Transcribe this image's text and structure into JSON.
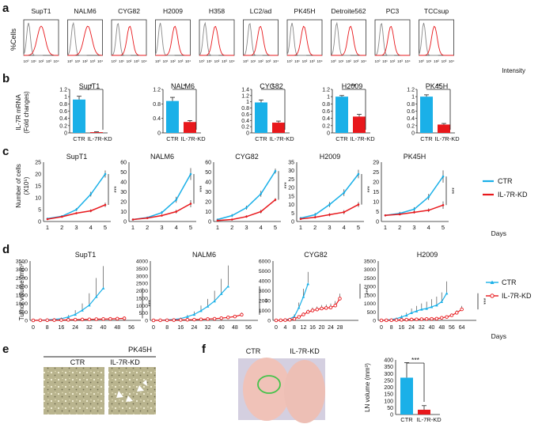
{
  "colors": {
    "ctr": "#1ab0e8",
    "kd": "#e8181c",
    "control_gray": "#888888",
    "axis": "#222222"
  },
  "panels": {
    "a": "a",
    "b": "b",
    "c": "c",
    "d": "d",
    "e": "e",
    "f": "f"
  },
  "panel_a": {
    "ylabel": "%Cells",
    "xlabel": "Intensity",
    "xticks": [
      "10⁰",
      "10¹",
      "10²",
      "10³",
      "10⁴"
    ],
    "cells": [
      "SupT1",
      "NALM6",
      "CYG82",
      "H2009",
      "H358",
      "LC2/ad",
      "PK45H",
      "Detroite562",
      "PC3",
      "TCCsup"
    ]
  },
  "panel_b": {
    "ylabel1": "IL-7R mRNA",
    "ylabel2": "(Fold changes)",
    "categories": [
      "CTR",
      "IL-7R-KD"
    ],
    "charts": [
      {
        "title": "SupT1",
        "ticks": [
          "0",
          "0.2",
          "0.4",
          "0.6",
          "0.8",
          "1",
          "1.2"
        ],
        "ylim": [
          0,
          1.2
        ],
        "values": [
          0.92,
          0.02
        ],
        "errors": [
          0.09,
          0.01
        ],
        "sig": "*"
      },
      {
        "title": "NALM6",
        "ticks": [
          "0",
          "0.4",
          "0.8",
          "1.2"
        ],
        "ylim": [
          0,
          1.2
        ],
        "values": [
          0.88,
          0.3
        ],
        "errors": [
          0.1,
          0.04
        ],
        "sig": "*"
      },
      {
        "title": "CYG82",
        "ticks": [
          "0",
          "0.2",
          "0.4",
          "0.6",
          "0.8",
          "1",
          "1.2",
          "1.4"
        ],
        "ylim": [
          0,
          1.4
        ],
        "values": [
          0.98,
          0.33
        ],
        "errors": [
          0.08,
          0.05
        ],
        "sig": "*"
      },
      {
        "title": "H2009",
        "ticks": [
          "0",
          "0.2",
          "0.4",
          "0.6",
          "0.8",
          "1",
          "1.2"
        ],
        "ylim": [
          0,
          1.2
        ],
        "values": [
          1.0,
          0.45
        ],
        "errors": [
          0.03,
          0.06
        ],
        "sig": "**"
      },
      {
        "title": "PK45H",
        "ticks": [
          "0",
          "0.2",
          "0.4",
          "0.6",
          "0.8",
          "1",
          "1.2"
        ],
        "ylim": [
          0,
          1.2
        ],
        "values": [
          1.0,
          0.23
        ],
        "errors": [
          0.05,
          0.03
        ],
        "sig": "**"
      }
    ]
  },
  "panel_c": {
    "ylabel1": "Number of cells",
    "ylabel2": "(X10⁵)",
    "xticks": [
      "1",
      "2",
      "3",
      "4",
      "5"
    ],
    "xlabel": "Days",
    "sig": "***",
    "legend": [
      {
        "label": "CTR",
        "color": "#1ab0e8"
      },
      {
        "label": "IL-7R-KD",
        "color": "#e8181c"
      }
    ],
    "charts": [
      {
        "title": "SupT1",
        "ymax": 25,
        "ticks": [
          "0",
          "5",
          "10",
          "15",
          "20",
          "25"
        ],
        "ctr": [
          1.2,
          2.2,
          5.0,
          11.5,
          20.0
        ],
        "kd": [
          1.0,
          2.0,
          3.5,
          4.5,
          7.0
        ],
        "err": [
          0.3,
          0.4,
          0.6,
          1.0,
          1.5
        ]
      },
      {
        "title": "NALM6",
        "ymax": 60,
        "ticks": [
          "0",
          "10",
          "20",
          "30",
          "40",
          "50",
          "60"
        ],
        "ctr": [
          2,
          4,
          9,
          22,
          48
        ],
        "kd": [
          2,
          3.5,
          6,
          10,
          18
        ],
        "err": [
          0.5,
          0.8,
          1.5,
          3,
          6
        ]
      },
      {
        "title": "CYG82",
        "ymax": 60,
        "ticks": [
          "0",
          "10",
          "20",
          "30",
          "40",
          "50",
          "60"
        ],
        "ctr": [
          2,
          6,
          14,
          28,
          51
        ],
        "kd": [
          1,
          2,
          5,
          10,
          22
        ],
        "err": [
          0.5,
          1.5,
          2,
          3,
          2.5
        ]
      },
      {
        "title": "H2009",
        "ymax": 35,
        "ticks": [
          "0",
          "5",
          "10",
          "15",
          "20",
          "25",
          "30",
          "35"
        ],
        "ctr": [
          2,
          4,
          10,
          17,
          28
        ],
        "kd": [
          1.5,
          2.5,
          4,
          5.5,
          10
        ],
        "err": [
          0.5,
          1,
          1.5,
          2,
          2.5
        ]
      },
      {
        "title": "PK45H",
        "ymax": 29,
        "ticks": [
          "0",
          "5",
          "10",
          "15",
          "20",
          "25",
          "29"
        ],
        "ctr": [
          3,
          4,
          6,
          12,
          22
        ],
        "kd": [
          3,
          3.5,
          4.5,
          5.5,
          8
        ],
        "err": [
          0.5,
          0.7,
          1,
          1.5,
          3
        ]
      }
    ]
  },
  "panel_d": {
    "ylabel": "Tumor volume (mm³)",
    "xlabel": "Days",
    "sig": [
      "***",
      "**",
      "***",
      "***"
    ],
    "legend": [
      {
        "label": "CTR",
        "color": "#1ab0e8"
      },
      {
        "label": "IL-7R-KD",
        "color": "#e8181c"
      }
    ],
    "charts": [
      {
        "title": "SupT1",
        "ymax": 3500,
        "ticks": [
          "0",
          "500",
          "1000",
          "1500",
          "2000",
          "2500",
          "3000",
          "3500"
        ],
        "xticks": [
          "0",
          "8",
          "16",
          "24",
          "32",
          "40",
          "48",
          "56"
        ],
        "xmax": 56,
        "ctr_x": [
          0,
          4,
          8,
          12,
          16,
          20,
          24,
          28,
          32,
          36,
          40
        ],
        "ctr": [
          0,
          10,
          30,
          60,
          100,
          200,
          350,
          600,
          900,
          1400,
          1900
        ],
        "ctr_err": [
          0,
          5,
          10,
          30,
          60,
          120,
          250,
          400,
          700,
          1100,
          1300
        ],
        "kd_x": [
          0,
          4,
          8,
          12,
          16,
          20,
          24,
          28,
          32,
          36,
          40,
          44,
          48,
          52
        ],
        "kd": [
          0,
          5,
          10,
          15,
          20,
          30,
          40,
          50,
          60,
          70,
          80,
          90,
          100,
          120
        ],
        "kd_err": [
          0,
          3,
          5,
          8,
          10,
          12,
          15,
          18,
          20,
          22,
          25,
          30,
          35,
          40
        ]
      },
      {
        "title": "NALM6",
        "ymax": 4000,
        "ticks": [
          "0",
          "500",
          "1000",
          "1500",
          "2000",
          "2500",
          "3000",
          "3500",
          "4000"
        ],
        "xticks": [
          "0",
          "8",
          "16",
          "24",
          "32",
          "40",
          "48",
          "56"
        ],
        "xmax": 56,
        "ctr_x": [
          0,
          4,
          8,
          12,
          16,
          20,
          24,
          28,
          32,
          36,
          40,
          44
        ],
        "ctr": [
          0,
          10,
          30,
          60,
          120,
          250,
          400,
          650,
          950,
          1300,
          1800,
          2300
        ],
        "ctr_err": [
          0,
          5,
          15,
          30,
          60,
          120,
          200,
          350,
          500,
          700,
          1000,
          1400
        ],
        "kd_x": [
          0,
          4,
          8,
          12,
          16,
          20,
          24,
          28,
          32,
          36,
          40,
          44,
          48,
          52
        ],
        "kd": [
          0,
          5,
          10,
          20,
          30,
          40,
          50,
          70,
          90,
          110,
          150,
          200,
          260,
          380
        ],
        "kd_err": [
          0,
          3,
          5,
          8,
          10,
          15,
          20,
          30,
          40,
          50,
          70,
          90,
          110,
          150
        ]
      },
      {
        "title": "CYG82",
        "ymax": 6000,
        "ticks": [
          "0",
          "1000",
          "2000",
          "3000",
          "4000",
          "5000",
          "6000"
        ],
        "xticks": [
          "0",
          "4",
          "8",
          "12",
          "16",
          "20",
          "24",
          "28"
        ],
        "xmax": 32,
        "ctr_x": [
          0,
          2,
          4,
          6,
          8,
          10,
          12,
          14
        ],
        "ctr": [
          0,
          20,
          60,
          150,
          400,
          1300,
          2400,
          3700
        ],
        "ctr_err": [
          0,
          10,
          30,
          80,
          200,
          500,
          800,
          1200
        ],
        "kd_x": [
          0,
          2,
          4,
          6,
          8,
          10,
          12,
          14,
          16,
          18,
          20,
          22,
          24,
          26,
          28
        ],
        "kd": [
          0,
          10,
          30,
          60,
          150,
          350,
          600,
          850,
          1000,
          1100,
          1200,
          1250,
          1300,
          1500,
          2200
        ],
        "kd_err": [
          0,
          5,
          15,
          30,
          60,
          120,
          200,
          250,
          300,
          300,
          350,
          350,
          400,
          450,
          500
        ]
      },
      {
        "title": "H2009",
        "ymax": 3500,
        "ticks": [
          "0",
          "500",
          "1000",
          "1500",
          "2000",
          "2500",
          "3000",
          "3500"
        ],
        "xticks": [
          "0",
          "8",
          "16",
          "24",
          "32",
          "40",
          "48",
          "56",
          "64"
        ],
        "xmax": 68,
        "ctr_x": [
          0,
          4,
          8,
          12,
          16,
          20,
          24,
          28,
          32,
          36,
          40,
          44,
          48,
          52
        ],
        "ctr": [
          0,
          20,
          50,
          100,
          200,
          300,
          450,
          550,
          650,
          700,
          800,
          900,
          1100,
          1600
        ],
        "ctr_err": [
          0,
          10,
          30,
          60,
          100,
          150,
          250,
          300,
          350,
          400,
          450,
          500,
          550,
          700
        ],
        "kd_x": [
          0,
          4,
          8,
          12,
          16,
          20,
          24,
          28,
          32,
          36,
          40,
          44,
          48,
          52,
          56,
          60,
          64
        ],
        "kd": [
          0,
          5,
          10,
          20,
          30,
          40,
          50,
          60,
          70,
          80,
          90,
          100,
          150,
          200,
          300,
          450,
          650
        ],
        "kd_err": [
          0,
          3,
          5,
          10,
          15,
          20,
          25,
          30,
          35,
          40,
          45,
          50,
          60,
          80,
          100,
          150,
          200
        ]
      }
    ]
  },
  "panel_e": {
    "title": "PK45H",
    "labels": [
      "CTR",
      "IL-7R-KD"
    ]
  },
  "panel_f": {
    "photo_labels": [
      "CTR",
      "IL-7R-KD"
    ],
    "chart": {
      "ylabel": "LN volume (mm³)",
      "categories": [
        "CTR",
        "IL-7R-KD"
      ],
      "values": [
        270,
        35
      ],
      "errors": [
        110,
        30
      ],
      "ticks": [
        "0",
        "50",
        "100",
        "150",
        "200",
        "250",
        "300",
        "350",
        "400"
      ],
      "ymax": 400,
      "sig": "***"
    }
  },
  "chart_data": [
    {
      "type": "bar",
      "title": "IL-7R mRNA (Fold changes)",
      "categories": [
        "CTR",
        "IL-7R-KD"
      ],
      "series": [
        {
          "name": "SupT1",
          "values": [
            0.92,
            0.02
          ]
        },
        {
          "name": "NALM6",
          "values": [
            0.88,
            0.3
          ]
        },
        {
          "name": "CYG82",
          "values": [
            0.98,
            0.33
          ]
        },
        {
          "name": "H2009",
          "values": [
            1.0,
            0.45
          ]
        },
        {
          "name": "PK45H",
          "values": [
            1.0,
            0.23
          ]
        }
      ]
    },
    {
      "type": "line",
      "title": "Number of cells (X10⁵)",
      "x": [
        1,
        2,
        3,
        4,
        5
      ],
      "xlabel": "Days",
      "series_source": "panel_c.charts"
    },
    {
      "type": "line",
      "title": "Tumor volume (mm³)",
      "xlabel": "Days",
      "series_source": "panel_d.charts"
    },
    {
      "type": "bar",
      "title": "LN volume (mm³)",
      "categories": [
        "CTR",
        "IL-7R-KD"
      ],
      "values": [
        270,
        35
      ],
      "ylim": [
        0,
        400
      ]
    }
  ]
}
